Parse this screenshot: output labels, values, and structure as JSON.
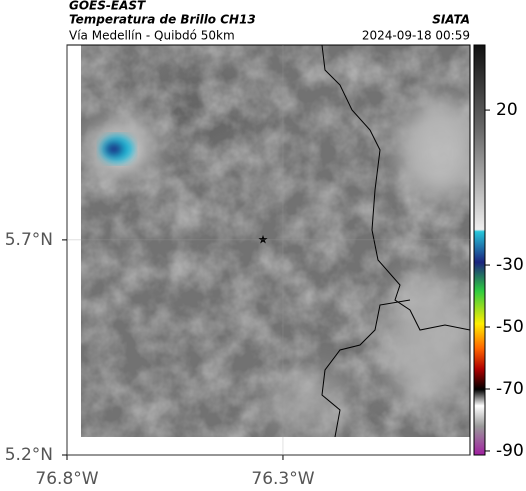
{
  "header": {
    "source": "GOES-EAST",
    "title": "Temperatura de Brillo CH13",
    "subtitle": "Vía Medellín - Quibdó 50km",
    "agency": "SIATA",
    "datetime": "2024-09-18 00:59"
  },
  "map": {
    "xlim": [
      -76.8,
      -75.867
    ],
    "ylim": [
      5.2,
      6.153
    ],
    "xticks": [
      {
        "value": -76.8,
        "label": "76.8°W"
      },
      {
        "value": -76.3,
        "label": "76.3°W"
      }
    ],
    "yticks": [
      {
        "value": 5.2,
        "label": "5.2°N"
      },
      {
        "value": 5.7,
        "label": "5.7°N"
      }
    ]
  },
  "colorbar": {
    "lim": [
      -91.3,
      41
    ],
    "ticks": [
      20,
      -30,
      -50,
      -70,
      -90
    ]
  }
}
